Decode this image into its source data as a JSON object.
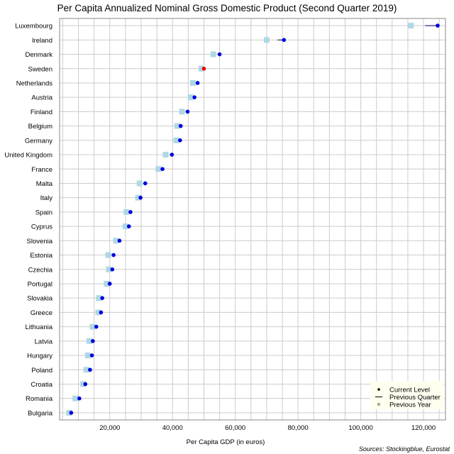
{
  "chart_data": {
    "type": "scatter",
    "title": "Per Capita Annualized Nominal Gross Domestic Product (Second Quarter 2019)",
    "xlabel": "Per Capita GDP (in euros)",
    "ylabel": "",
    "source": "Sources: Stockingblue, Eurostat",
    "xlim": [
      4000,
      127000
    ],
    "xticks": [
      20000,
      40000,
      60000,
      80000,
      100000,
      120000
    ],
    "xtick_labels": [
      "20,000",
      "40,000",
      "60,000",
      "80,000",
      "100,000",
      "120,000"
    ],
    "grid": true,
    "legend_position": "bottom-right",
    "legend": [
      "Current Level",
      "Previous Quarter",
      "Previous Year"
    ],
    "colors": {
      "current": "#0000dd",
      "highlight": "#ee0000",
      "previous_quarter": "#000080",
      "previous_year": "#add8e6",
      "grid": "#cccccc",
      "legend_bg": "#fffff0"
    },
    "highlight_category": "Sweden",
    "categories": [
      "Luxembourg",
      "Ireland",
      "Denmark",
      "Sweden",
      "Netherlands",
      "Austria",
      "Finland",
      "Belgium",
      "Germany",
      "United Kingdom",
      "France",
      "Malta",
      "Italy",
      "Spain",
      "Cyprus",
      "Slovenia",
      "Estonia",
      "Czechia",
      "Portugal",
      "Slovakia",
      "Greece",
      "Lithuania",
      "Latvia",
      "Hungary",
      "Poland",
      "Croatia",
      "Romania",
      "Bulgaria"
    ],
    "series": [
      {
        "name": "Current Level",
        "values": [
          124500,
          75500,
          55000,
          50000,
          48000,
          47000,
          44800,
          42600,
          42400,
          39800,
          36800,
          31300,
          29800,
          26600,
          26100,
          23100,
          21200,
          20800,
          20000,
          17600,
          17200,
          15700,
          14600,
          14300,
          13700,
          12200,
          10300,
          7700
        ]
      },
      {
        "name": "Previous Quarter",
        "values": [
          120500,
          73500,
          54500,
          49800,
          47600,
          46600,
          44200,
          42000,
          41900,
          39200,
          36300,
          31000,
          29400,
          26300,
          25800,
          22800,
          20900,
          20400,
          19700,
          17300,
          16900,
          15400,
          14300,
          14000,
          13400,
          11900,
          10000,
          7500
        ]
      },
      {
        "name": "Previous Year",
        "values": [
          116000,
          70000,
          53000,
          49200,
          46500,
          45800,
          43000,
          41500,
          41200,
          37800,
          35500,
          29500,
          29000,
          25300,
          25000,
          22000,
          19500,
          19700,
          19000,
          16500,
          16300,
          14500,
          13500,
          13000,
          12500,
          11500,
          9000,
          7000
        ]
      }
    ]
  }
}
